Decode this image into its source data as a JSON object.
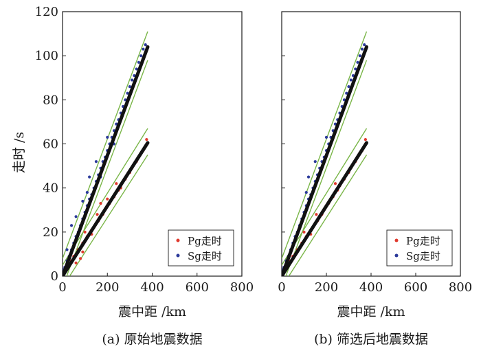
{
  "figure": {
    "ylabel": "走时 /s",
    "colors": {
      "axis": "#1a1a1a",
      "fit": "#111111",
      "bound": "#7ab648",
      "pg": "#e03a2e",
      "sg": "#2b3a9a"
    }
  },
  "chart_data": [
    {
      "type": "scatter",
      "title": "(a) 原始地震数据",
      "xlabel": "震中距 /km",
      "ylabel": "走时 /s",
      "xlim": [
        0,
        800
      ],
      "ylim": [
        0,
        120
      ],
      "xticks": [
        0,
        200,
        400,
        600,
        800
      ],
      "yticks": [
        0,
        20,
        40,
        60,
        80,
        100,
        120
      ],
      "legend": {
        "position": "bottom-right",
        "entries": [
          "Pg走时",
          "Sg走时"
        ]
      },
      "fit_lines": [
        {
          "name": "Pg fit",
          "x": [
            0,
            380
          ],
          "y": [
            0,
            60.5
          ]
        },
        {
          "name": "Sg fit",
          "x": [
            0,
            380
          ],
          "y": [
            0,
            104
          ]
        }
      ],
      "bound_lines": [
        {
          "name": "Pg upper",
          "x": [
            0,
            380
          ],
          "y": [
            5,
            67
          ]
        },
        {
          "name": "Pg lower",
          "x": [
            0,
            380
          ],
          "y": [
            -5,
            55
          ]
        },
        {
          "name": "Sg upper",
          "x": [
            0,
            380
          ],
          "y": [
            8,
            111
          ]
        },
        {
          "name": "Sg lower",
          "x": [
            0,
            380
          ],
          "y": [
            -5,
            98
          ]
        }
      ],
      "series": [
        {
          "name": "Pg走时",
          "points": [
            [
              10,
              2
            ],
            [
              20,
              4
            ],
            [
              30,
              5.5
            ],
            [
              40,
              7
            ],
            [
              50,
              9
            ],
            [
              60,
              10
            ],
            [
              70,
              12
            ],
            [
              80,
              13
            ],
            [
              90,
              15
            ],
            [
              100,
              16
            ],
            [
              110,
              18
            ],
            [
              120,
              19
            ],
            [
              130,
              21
            ],
            [
              140,
              22
            ],
            [
              150,
              24
            ],
            [
              160,
              25
            ],
            [
              170,
              27
            ],
            [
              180,
              28
            ],
            [
              190,
              30
            ],
            [
              200,
              32
            ],
            [
              210,
              33
            ],
            [
              220,
              35
            ],
            [
              230,
              36
            ],
            [
              240,
              38
            ],
            [
              250,
              39
            ],
            [
              260,
              41
            ],
            [
              270,
              43
            ],
            [
              280,
              44
            ],
            [
              290,
              46
            ],
            [
              300,
              47
            ],
            [
              310,
              49
            ],
            [
              320,
              51
            ],
            [
              330,
              52
            ],
            [
              340,
              54
            ],
            [
              350,
              56
            ],
            [
              360,
              57
            ],
            [
              370,
              59
            ],
            [
              375,
              62
            ],
            [
              60,
              6
            ],
            [
              80,
              8
            ],
            [
              100,
              20
            ],
            [
              170,
              33
            ],
            [
              200,
              35
            ],
            [
              260,
              40
            ],
            [
              90,
              11
            ],
            [
              130,
              19
            ],
            [
              155,
              28
            ],
            [
              240,
              42
            ]
          ]
        },
        {
          "name": "Sg走时",
          "points": [
            [
              5,
              3
            ],
            [
              10,
              4
            ],
            [
              20,
              7
            ],
            [
              30,
              9
            ],
            [
              40,
              12
            ],
            [
              50,
              15
            ],
            [
              60,
              18
            ],
            [
              70,
              20
            ],
            [
              80,
              23
            ],
            [
              90,
              26
            ],
            [
              100,
              29
            ],
            [
              110,
              32
            ],
            [
              120,
              35
            ],
            [
              130,
              37
            ],
            [
              140,
              40
            ],
            [
              150,
              43
            ],
            [
              160,
              46
            ],
            [
              170,
              49
            ],
            [
              180,
              52
            ],
            [
              190,
              54
            ],
            [
              200,
              57
            ],
            [
              210,
              60
            ],
            [
              220,
              63
            ],
            [
              230,
              66
            ],
            [
              240,
              69
            ],
            [
              250,
              71
            ],
            [
              260,
              74
            ],
            [
              270,
              77
            ],
            [
              280,
              80
            ],
            [
              290,
              83
            ],
            [
              300,
              86
            ],
            [
              310,
              89
            ],
            [
              320,
              91
            ],
            [
              330,
              94
            ],
            [
              340,
              97
            ],
            [
              350,
              100
            ],
            [
              360,
              103
            ],
            [
              370,
              105
            ],
            [
              40,
              23
            ],
            [
              60,
              27
            ],
            [
              90,
              34
            ],
            [
              110,
              38
            ],
            [
              150,
              52
            ],
            [
              200,
              63
            ],
            [
              230,
              60
            ],
            [
              120,
              45
            ],
            [
              170,
              45
            ],
            [
              20,
              12
            ]
          ]
        }
      ]
    },
    {
      "type": "scatter",
      "title": "(b) 筛选后地震数据",
      "xlabel": "震中距 /km",
      "ylabel": "",
      "xlim": [
        0,
        800
      ],
      "ylim": [
        0,
        120
      ],
      "xticks": [
        0,
        200,
        400,
        600,
        800
      ],
      "yticks": [
        0,
        20,
        40,
        60,
        80,
        100,
        120
      ],
      "legend": {
        "position": "bottom-right",
        "entries": [
          "Pg走时",
          "Sg走时"
        ]
      },
      "fit_lines": [
        {
          "name": "Pg fit",
          "x": [
            0,
            380
          ],
          "y": [
            0,
            60.5
          ]
        },
        {
          "name": "Sg fit",
          "x": [
            0,
            380
          ],
          "y": [
            0,
            104
          ]
        }
      ],
      "bound_lines": [
        {
          "name": "Pg upper",
          "x": [
            0,
            380
          ],
          "y": [
            5,
            67
          ]
        },
        {
          "name": "Pg lower",
          "x": [
            0,
            380
          ],
          "y": [
            -5,
            55
          ]
        },
        {
          "name": "Sg upper",
          "x": [
            0,
            380
          ],
          "y": [
            8,
            111
          ]
        },
        {
          "name": "Sg lower",
          "x": [
            0,
            380
          ],
          "y": [
            -5,
            98
          ]
        }
      ],
      "series": [
        {
          "name": "Pg走时",
          "points": [
            [
              10,
              2
            ],
            [
              20,
              4
            ],
            [
              30,
              5.5
            ],
            [
              40,
              7
            ],
            [
              50,
              9
            ],
            [
              60,
              10
            ],
            [
              70,
              12
            ],
            [
              80,
              13
            ],
            [
              90,
              15
            ],
            [
              100,
              16
            ],
            [
              110,
              18
            ],
            [
              120,
              19
            ],
            [
              130,
              21
            ],
            [
              140,
              22
            ],
            [
              150,
              24
            ],
            [
              160,
              25
            ],
            [
              170,
              27
            ],
            [
              180,
              28
            ],
            [
              190,
              30
            ],
            [
              200,
              32
            ],
            [
              210,
              33
            ],
            [
              220,
              35
            ],
            [
              230,
              36
            ],
            [
              240,
              38
            ],
            [
              250,
              39
            ],
            [
              260,
              41
            ],
            [
              270,
              43
            ],
            [
              280,
              44
            ],
            [
              290,
              46
            ],
            [
              300,
              47
            ],
            [
              310,
              49
            ],
            [
              320,
              51
            ],
            [
              330,
              52
            ],
            [
              340,
              54
            ],
            [
              350,
              56
            ],
            [
              360,
              57
            ],
            [
              370,
              59
            ],
            [
              375,
              62
            ],
            [
              100,
              20
            ],
            [
              130,
              19
            ],
            [
              155,
              28
            ],
            [
              240,
              42
            ]
          ]
        },
        {
          "name": "Sg走时",
          "points": [
            [
              5,
              3
            ],
            [
              10,
              4
            ],
            [
              20,
              7
            ],
            [
              30,
              9
            ],
            [
              40,
              12
            ],
            [
              50,
              15
            ],
            [
              60,
              18
            ],
            [
              70,
              20
            ],
            [
              80,
              23
            ],
            [
              90,
              26
            ],
            [
              100,
              29
            ],
            [
              110,
              32
            ],
            [
              120,
              35
            ],
            [
              130,
              37
            ],
            [
              140,
              40
            ],
            [
              150,
              43
            ],
            [
              160,
              46
            ],
            [
              170,
              49
            ],
            [
              180,
              52
            ],
            [
              190,
              54
            ],
            [
              200,
              57
            ],
            [
              210,
              60
            ],
            [
              220,
              63
            ],
            [
              230,
              66
            ],
            [
              240,
              69
            ],
            [
              250,
              71
            ],
            [
              260,
              74
            ],
            [
              270,
              77
            ],
            [
              280,
              80
            ],
            [
              290,
              83
            ],
            [
              300,
              86
            ],
            [
              310,
              89
            ],
            [
              320,
              91
            ],
            [
              330,
              94
            ],
            [
              340,
              97
            ],
            [
              350,
              100
            ],
            [
              360,
              103
            ],
            [
              370,
              105
            ],
            [
              110,
              38
            ],
            [
              150,
              52
            ],
            [
              200,
              63
            ],
            [
              120,
              45
            ]
          ]
        }
      ]
    }
  ]
}
